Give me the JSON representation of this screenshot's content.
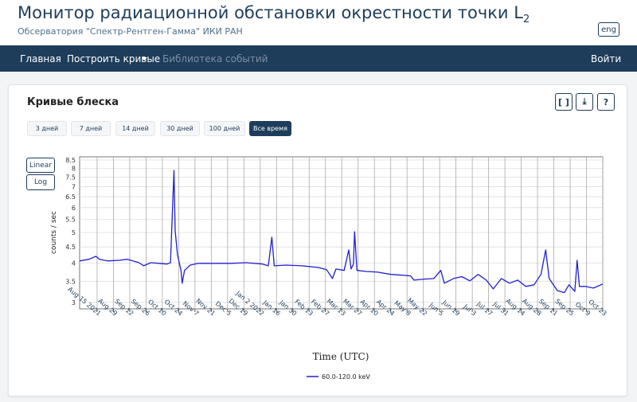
{
  "header": {
    "title": "Монитор радиационной обстановки окрестности точки L",
    "title_subscript": "2",
    "subtitle": "Обсерватория \"Спектр-Рентген-Гамма\" ИКИ РАН",
    "lang_button": "eng"
  },
  "nav": {
    "items": [
      "Главная",
      "Построить кривые",
      "Библиотека событий"
    ],
    "login": "Войти"
  },
  "card": {
    "title": "Кривые блеска",
    "tools": [
      "[ ]",
      "⤓",
      "?"
    ],
    "ranges": [
      "3 дней",
      "7 дней",
      "14 дней",
      "30 дней",
      "100 дней",
      "Все время"
    ],
    "active_range": 5,
    "scale_buttons": [
      "Linear",
      "Log"
    ]
  },
  "chart_data": {
    "type": "line",
    "y_label": "counts / sec",
    "x_label": "Time (UTC)",
    "log_y": true,
    "grid": true,
    "x": [
      "2021-07-31",
      "2021-08-08",
      "2021-08-14",
      "2021-08-17",
      "2021-08-24",
      "2021-09-03",
      "2021-09-10",
      "2021-09-20",
      "2021-09-24",
      "2021-09-30",
      "2021-10-07",
      "2021-10-14",
      "2021-10-17",
      "2021-10-20",
      "2021-10-21",
      "2021-10-23",
      "2021-10-26",
      "2021-10-27",
      "2021-10-29",
      "2021-11-03",
      "2021-11-10",
      "2021-11-24",
      "2021-12-08",
      "2021-12-21",
      "2022-01-04",
      "2022-01-09",
      "2022-01-12",
      "2022-01-14",
      "2022-01-24",
      "2022-02-07",
      "2022-02-21",
      "2022-02-28",
      "2022-03-05",
      "2022-03-08",
      "2022-03-15",
      "2022-03-19",
      "2022-03-21",
      "2022-03-23",
      "2022-03-24",
      "2022-03-26",
      "2022-04-03",
      "2022-04-13",
      "2022-04-24",
      "2022-05-04",
      "2022-05-11",
      "2022-05-14",
      "2022-05-21",
      "2022-05-31",
      "2022-06-06",
      "2022-06-09",
      "2022-06-17",
      "2022-06-24",
      "2022-07-01",
      "2022-07-08",
      "2022-07-15",
      "2022-07-21",
      "2022-07-28",
      "2022-08-04",
      "2022-08-11",
      "2022-08-18",
      "2022-08-25",
      "2022-08-31",
      "2022-09-04",
      "2022-09-07",
      "2022-09-14",
      "2022-09-20",
      "2022-09-24",
      "2022-09-29",
      "2022-10-01",
      "2022-10-03",
      "2022-10-08",
      "2022-10-15",
      "2022-10-23"
    ],
    "series": [
      {
        "name": "60.0-120.0 keV",
        "color": "#1f1fd0",
        "values": [
          4.06,
          4.11,
          4.2,
          4.11,
          4.06,
          4.08,
          4.11,
          4.01,
          3.92,
          4.01,
          3.99,
          3.97,
          4.01,
          7.88,
          5.06,
          4.25,
          3.79,
          3.45,
          3.79,
          3.94,
          3.99,
          3.99,
          3.99,
          4.01,
          3.97,
          3.92,
          4.83,
          3.92,
          3.94,
          3.92,
          3.87,
          3.81,
          3.57,
          3.83,
          3.79,
          4.4,
          3.83,
          3.97,
          5.03,
          3.79,
          3.76,
          3.74,
          3.68,
          3.66,
          3.64,
          3.53,
          3.55,
          3.57,
          3.79,
          3.45,
          3.57,
          3.62,
          3.51,
          3.68,
          3.53,
          3.31,
          3.57,
          3.45,
          3.53,
          3.37,
          3.41,
          3.68,
          4.4,
          3.57,
          3.27,
          3.22,
          3.41,
          3.25,
          4.08,
          3.37,
          3.37,
          3.33,
          3.43
        ]
      }
    ],
    "xlim": [
      "2021-07-31",
      "2022-10-23"
    ],
    "ylim": [
      2.86,
      8.7
    ],
    "yticks": [
      3,
      3.5,
      4,
      4.5,
      5,
      5.5,
      6,
      6.5,
      7,
      7.5,
      8,
      8.5
    ],
    "xticks": [
      {
        "value": "2021-08-15",
        "label": "Aug 15 2021"
      },
      {
        "value": "2021-08-29",
        "label": "Aug 29"
      },
      {
        "value": "2021-09-12",
        "label": "Sep 12"
      },
      {
        "value": "2021-09-26",
        "label": "Sep 26"
      },
      {
        "value": "2021-10-10",
        "label": "Oct 10"
      },
      {
        "value": "2021-10-24",
        "label": "Oct 24"
      },
      {
        "value": "2021-11-07",
        "label": "Nov 7"
      },
      {
        "value": "2021-11-21",
        "label": "Nov 21"
      },
      {
        "value": "2021-12-05",
        "label": "Dec 5"
      },
      {
        "value": "2021-12-19",
        "label": "Dec 19"
      },
      {
        "value": "2022-01-02",
        "label": "Jan 2 2022"
      },
      {
        "value": "2022-01-16",
        "label": "Jan 16"
      },
      {
        "value": "2022-01-30",
        "label": "Jan 30"
      },
      {
        "value": "2022-02-13",
        "label": "Feb 13"
      },
      {
        "value": "2022-02-27",
        "label": "Feb 27"
      },
      {
        "value": "2022-03-13",
        "label": "Mar 13"
      },
      {
        "value": "2022-03-27",
        "label": "Mar 27"
      },
      {
        "value": "2022-04-10",
        "label": "Apr 10"
      },
      {
        "value": "2022-04-24",
        "label": "Apr 24"
      },
      {
        "value": "2022-05-08",
        "label": "May 8"
      },
      {
        "value": "2022-05-22",
        "label": "May 22"
      },
      {
        "value": "2022-06-05",
        "label": "Jun 5"
      },
      {
        "value": "2022-06-19",
        "label": "Jun 19"
      },
      {
        "value": "2022-07-03",
        "label": "Jul 3"
      },
      {
        "value": "2022-07-17",
        "label": "Jul 17"
      },
      {
        "value": "2022-07-31",
        "label": "Jul 31"
      },
      {
        "value": "2022-08-14",
        "label": "Aug 14"
      },
      {
        "value": "2022-08-28",
        "label": "Aug 28"
      },
      {
        "value": "2022-09-11",
        "label": "Sep 11"
      },
      {
        "value": "2022-09-25",
        "label": "Sep 25"
      },
      {
        "value": "2022-10-09",
        "label": "Oct 9"
      },
      {
        "value": "2022-10-23",
        "label": "Oct 23"
      }
    ]
  }
}
